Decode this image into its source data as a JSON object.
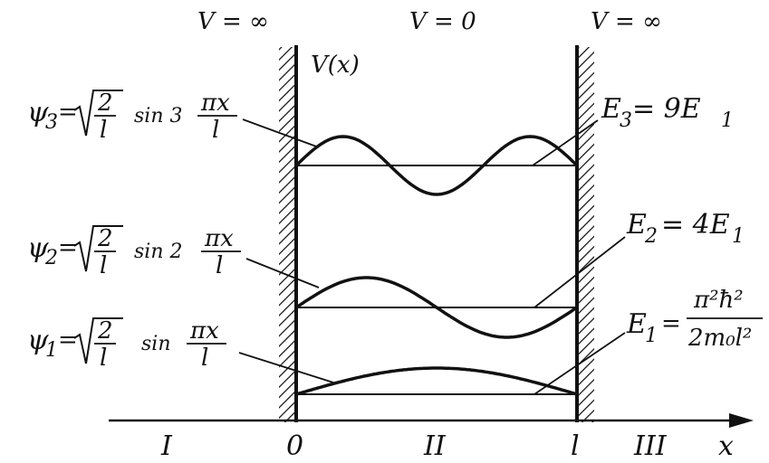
{
  "potential": {
    "left": "V = ∞",
    "middle": "V = 0",
    "right": "V = ∞",
    "axis": "V(x)"
  },
  "regions": {
    "left": "I",
    "middle": "II",
    "right": "III"
  },
  "axis": {
    "origin": "0",
    "end": "l",
    "x": "x"
  },
  "wavefunctions": [
    {
      "psi": "ψ",
      "sub": "3",
      "eq": "=",
      "frac_num": "2",
      "frac_den": "l",
      "sin": "sin 3",
      "arg_num": "πx",
      "arg_den": "l"
    },
    {
      "psi": "ψ",
      "sub": "2",
      "eq": "=",
      "frac_num": "2",
      "frac_den": "l",
      "sin": "sin 2",
      "arg_num": "πx",
      "arg_den": "l"
    },
    {
      "psi": "ψ",
      "sub": "1",
      "eq": "=",
      "frac_num": "2",
      "frac_den": "l",
      "sin": "sin",
      "arg_num": "πx",
      "arg_den": "l"
    }
  ],
  "energies": {
    "e3": {
      "lhs": "E",
      "sub": "3",
      "rhs": "= 9E",
      "rhs_sub": "1"
    },
    "e2": {
      "lhs": "E",
      "sub": "2",
      "rhs": "= 4E",
      "rhs_sub": "1"
    },
    "e1": {
      "lhs": "E",
      "sub": "1",
      "eq": "=",
      "num": "π²ħ²",
      "den": "2m₀l²"
    }
  }
}
